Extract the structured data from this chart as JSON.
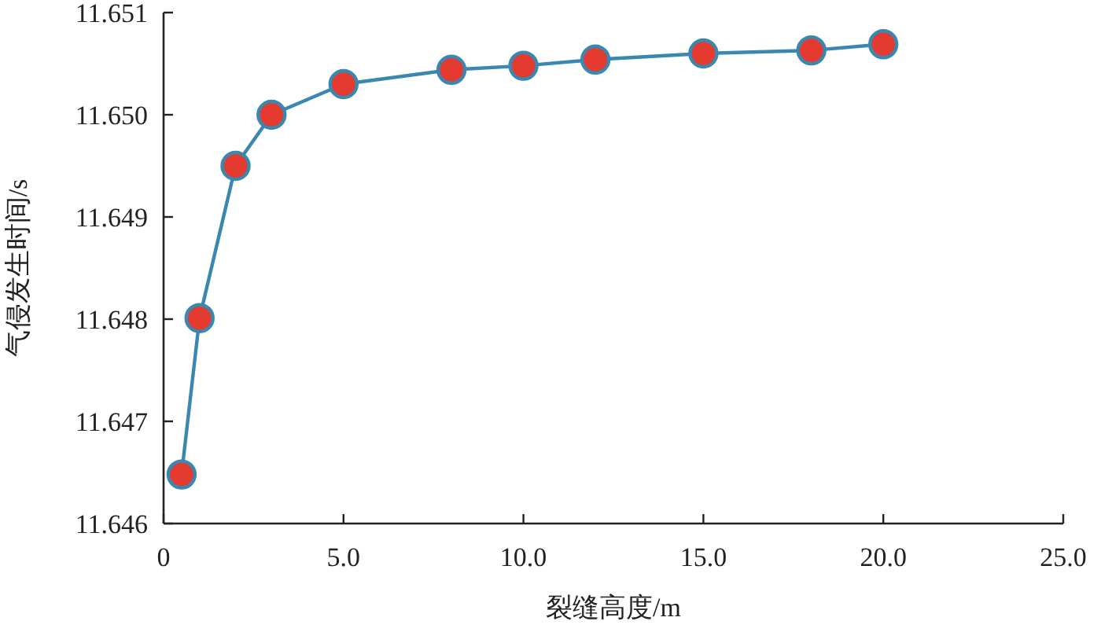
{
  "chart_data": {
    "type": "line",
    "xlabel": "裂缝高度/m",
    "ylabel": "气侵发生时间/s",
    "x": [
      0.5,
      1,
      2,
      3,
      5,
      8,
      10,
      12,
      15,
      18,
      20
    ],
    "series": [
      {
        "color": "#3a87b0",
        "values": [
          11.64648,
          11.64801,
          11.6495,
          11.65,
          11.6503,
          11.65044,
          11.65048,
          11.65054,
          11.6506,
          11.65063,
          11.65069
        ],
        "colors": [
          "#e53a2f",
          "#e53a2f",
          "#e53a2f",
          "#e53a2f",
          "#e53a2f",
          "#e53a2f",
          "#e53a2f",
          "#e53a2f",
          "#e53a2f",
          "#e53a2f",
          "#e53a2f"
        ]
      }
    ],
    "marker": "circle",
    "line_style": "solid",
    "xlim": [
      0,
      25
    ],
    "xticks": [
      0,
      {
        "value": 5,
        "label": "5.0"
      },
      {
        "value": 10,
        "label": "10.0"
      },
      {
        "value": 15,
        "label": "15.0"
      },
      {
        "value": 20,
        "label": "20.0"
      },
      {
        "value": 25,
        "label": "25.0"
      }
    ],
    "ylim": [
      11.646,
      11.651
    ],
    "yticks": [
      11.646,
      11.647,
      11.648,
      11.649,
      {
        "value": 11.65,
        "label": "11.650"
      },
      11.651
    ],
    "grid": false
  }
}
